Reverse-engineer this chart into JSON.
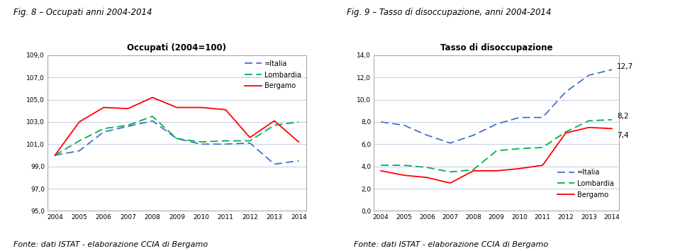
{
  "years": [
    2004,
    2005,
    2006,
    2007,
    2008,
    2009,
    2010,
    2011,
    2012,
    2013,
    2014
  ],
  "fig8_title": "Occupati (2004=100)",
  "fig8_italia": [
    100.0,
    100.4,
    102.1,
    102.6,
    103.1,
    101.5,
    101.0,
    101.0,
    101.1,
    99.2,
    99.5
  ],
  "fig8_lombardia": [
    100.0,
    101.3,
    102.4,
    102.7,
    103.5,
    101.5,
    101.2,
    101.3,
    101.3,
    102.7,
    103.0
  ],
  "fig8_bergamo": [
    100.0,
    103.0,
    104.3,
    104.2,
    105.2,
    104.3,
    104.3,
    104.1,
    101.6,
    103.1,
    101.2
  ],
  "fig8_ylim": [
    95.0,
    109.0
  ],
  "fig8_yticks": [
    95.0,
    97.0,
    99.0,
    101.0,
    103.0,
    105.0,
    107.0,
    109.0
  ],
  "fig9_title": "Tasso di disoccupazione",
  "fig9_italia": [
    8.0,
    7.7,
    6.8,
    6.1,
    6.8,
    7.8,
    8.4,
    8.4,
    10.7,
    12.2,
    12.7
  ],
  "fig9_lombardia": [
    4.1,
    4.1,
    3.9,
    3.5,
    3.7,
    5.4,
    5.6,
    5.7,
    7.1,
    8.1,
    8.2
  ],
  "fig9_bergamo": [
    3.6,
    3.2,
    3.0,
    2.5,
    3.6,
    3.6,
    3.8,
    4.1,
    7.0,
    7.5,
    7.4
  ],
  "fig9_ylim": [
    0.0,
    14.0
  ],
  "fig9_yticks": [
    0.0,
    2.0,
    4.0,
    6.0,
    8.0,
    10.0,
    12.0,
    14.0
  ],
  "fig9_label_italia": "12,7",
  "fig9_label_lombardia": "8,2",
  "fig9_label_bergamo": "7,4",
  "color_italia": "#4472C4",
  "color_lombardia": "#00B050",
  "color_bergamo": "#FF0000",
  "grid_color": "#B8C4E0",
  "fig8_main_title": "Fig. 8 – Occupati anni 2004-2014",
  "fig9_main_title": "Fig. 9 – Tasso di disoccupazione, anni 2004-2014",
  "fonte_text": "Fonte: dati ISTAT - elaborazione CCIA di Bergamo",
  "legend_italia": "=Italia",
  "legend_lombardia": "Lombardia",
  "legend_bergamo": "Bergamo"
}
